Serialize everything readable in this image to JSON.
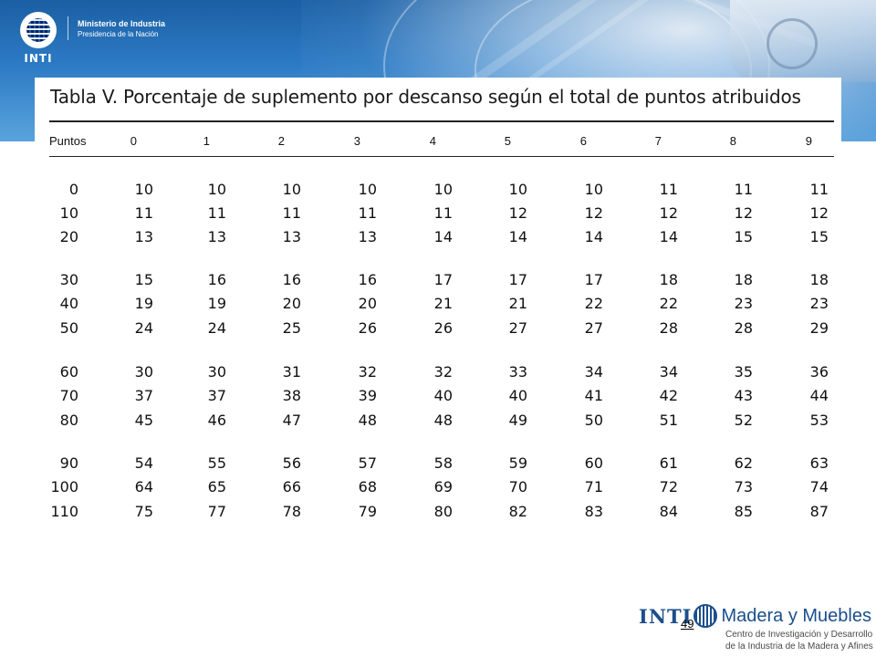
{
  "header": {
    "logo_text": "INTI",
    "ministry_line1": "Ministerio de Industria",
    "ministry_line2": "Presidencia de la Nación"
  },
  "table": {
    "title": "Tabla V.   Porcentaje de suplemento por descanso según el total de puntos atribuidos",
    "row_header": "Puntos",
    "columns": [
      "0",
      "1",
      "2",
      "3",
      "4",
      "5",
      "6",
      "7",
      "8",
      "9"
    ],
    "rows": [
      {
        "label": "0",
        "values": [
          "10",
          "10",
          "10",
          "10",
          "10",
          "10",
          "10",
          "11",
          "11",
          "11"
        ]
      },
      {
        "label": "10",
        "values": [
          "11",
          "11",
          "11",
          "11",
          "11",
          "12",
          "12",
          "12",
          "12",
          "12"
        ]
      },
      {
        "label": "20",
        "values": [
          "13",
          "13",
          "13",
          "13",
          "14",
          "14",
          "14",
          "14",
          "15",
          "15"
        ]
      },
      {
        "label": "30",
        "values": [
          "15",
          "16",
          "16",
          "16",
          "17",
          "17",
          "17",
          "18",
          "18",
          "18"
        ]
      },
      {
        "label": "40",
        "values": [
          "19",
          "19",
          "20",
          "20",
          "21",
          "21",
          "22",
          "22",
          "23",
          "23"
        ]
      },
      {
        "label": "50",
        "values": [
          "24",
          "24",
          "25",
          "26",
          "26",
          "27",
          "27",
          "28",
          "28",
          "29"
        ]
      },
      {
        "label": "60",
        "values": [
          "30",
          "30",
          "31",
          "32",
          "32",
          "33",
          "34",
          "34",
          "35",
          "36"
        ]
      },
      {
        "label": "70",
        "values": [
          "37",
          "37",
          "38",
          "39",
          "40",
          "40",
          "41",
          "42",
          "43",
          "44"
        ]
      },
      {
        "label": "80",
        "values": [
          "45",
          "46",
          "47",
          "48",
          "48",
          "49",
          "50",
          "51",
          "52",
          "53"
        ]
      },
      {
        "label": "90",
        "values": [
          "54",
          "55",
          "56",
          "57",
          "58",
          "59",
          "60",
          "61",
          "62",
          "63"
        ]
      },
      {
        "label": "100",
        "values": [
          "64",
          "65",
          "66",
          "68",
          "69",
          "70",
          "71",
          "72",
          "73",
          "74"
        ]
      },
      {
        "label": "110",
        "values": [
          "75",
          "77",
          "78",
          "79",
          "80",
          "82",
          "83",
          "84",
          "85",
          "87"
        ]
      }
    ]
  },
  "footer": {
    "logo_text": "INTI",
    "brand": "Madera y Muebles",
    "subtitle_line1": "Centro de Investigación y Desarrollo",
    "subtitle_line2": "de la Industria de la Madera y Afines",
    "page_number": "49"
  }
}
